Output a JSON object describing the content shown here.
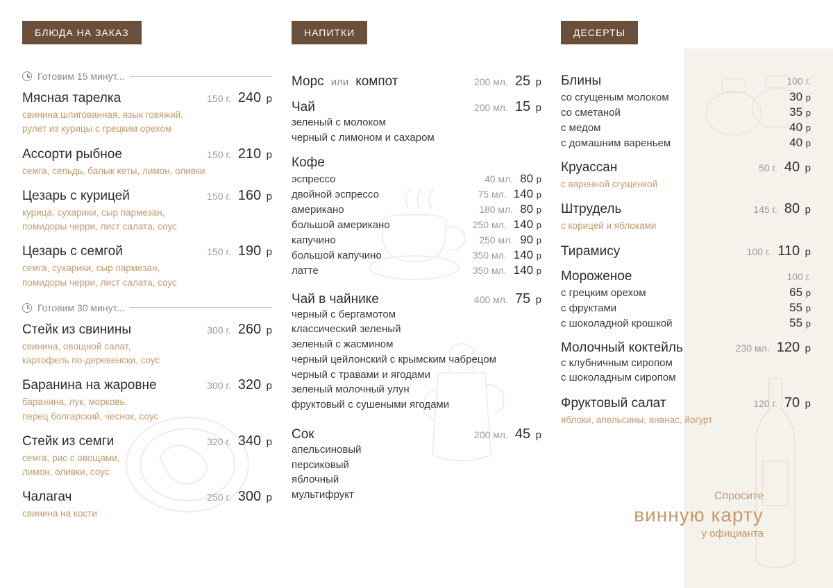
{
  "currency": "р",
  "colors": {
    "header_bg": "#6a4f3a",
    "header_text": "#ffffff",
    "accent": "#c49a6c",
    "muted": "#9a9a9a",
    "text": "#2c2c2c",
    "panel_bg": "#f5f2ec",
    "rule": "#d0c6b8"
  },
  "col1": {
    "header": "БЛЮДА НА ЗАКАЗ",
    "time1": "Готовим 15 минут...",
    "time2": "Готовим 30 минут...",
    "group1": [
      {
        "name": "Мясная тарелка",
        "portion": "150 г.",
        "price": "240",
        "desc": "свинина шпигованная, язык говяжий,\nрулет из курицы с грецким орехом"
      },
      {
        "name": "Ассорти рыбное",
        "portion": "150 г.",
        "price": "210",
        "desc": "семга, сельдь, балык кеты, лимон, оливки"
      },
      {
        "name": "Цезарь с курицей",
        "portion": "150 г.",
        "price": "160",
        "desc": "курица, сухарики, сыр пармезан,\nпомидоры черри, лист салата, соус"
      },
      {
        "name": "Цезарь с семгой",
        "portion": "150 г.",
        "price": "190",
        "desc": "семга, сухарики, сыр пармезан,\nпомидоры черри, лист салата, соус"
      }
    ],
    "group2": [
      {
        "name": "Стейк из свинины",
        "portion": "300 г.",
        "price": "260",
        "desc": "свинина, овощной салат,\nкартофель по-деревенски, соус"
      },
      {
        "name": "Баранина на жаровне",
        "portion": "300 г.",
        "price": "320",
        "desc": "баранина, лук, морковь,\nперец болгарский, чеснок, соус"
      },
      {
        "name": "Стейк из семги",
        "portion": "320 г.",
        "price": "340",
        "desc": "семга, рис с овощами,\nлимон, оливки, соус"
      },
      {
        "name": "Чалагач",
        "portion": "250 г.",
        "price": "300",
        "desc": "свинина на кости"
      }
    ]
  },
  "col2": {
    "header": "НАПИТКИ",
    "mors": {
      "name": "Морс",
      "note": "или",
      "name2": "компот",
      "portion": "200 мл.",
      "price": "25"
    },
    "tea": {
      "name": "Чай",
      "portion": "200 мл.",
      "price": "15",
      "variants": [
        "зеленый с молоком",
        "черный с лимоном и сахаром"
      ]
    },
    "coffee": {
      "name": "Кофе",
      "lines": [
        {
          "nm": "эспрессо",
          "pt": "40 мл.",
          "pr": "80"
        },
        {
          "nm": "двойной эспрессо",
          "pt": "75 мл.",
          "pr": "140"
        },
        {
          "nm": "американо",
          "pt": "180 мл.",
          "pr": "80"
        },
        {
          "nm": "большой американо",
          "pt": "250 мл.",
          "pr": "140"
        },
        {
          "nm": "капучино",
          "pt": "250 мл.",
          "pr": "90"
        },
        {
          "nm": "большой капучино",
          "pt": "350 мл.",
          "pr": "140"
        },
        {
          "nm": "латте",
          "pt": "350 мл.",
          "pr": "140"
        }
      ]
    },
    "teapot": {
      "name": "Чай в чайнике",
      "portion": "400 мл.",
      "price": "75",
      "variants": [
        "черный с бергамотом",
        "классический зеленый",
        "зеленый с жасмином",
        "черный цейлонский с крымским чабрецом",
        "черный с травами и ягодами",
        "зеленый молочный улун",
        "фруктовый с сушеными ягодами"
      ]
    },
    "juice": {
      "name": "Сок",
      "portion": "200 мл.",
      "price": "45",
      "variants": [
        "апельсиновый",
        "персиковый",
        "яблочный",
        "мультифрукт"
      ]
    }
  },
  "col3": {
    "header": "ДЕСЕРТЫ",
    "bliny": {
      "name": "Блины",
      "portion": "100 г.",
      "lines": [
        {
          "nm": "со сгущеным молоком",
          "pr": "30"
        },
        {
          "nm": "со сметаной",
          "pr": "35"
        },
        {
          "nm": "с медом",
          "pr": "40"
        },
        {
          "nm": "с домашним вареньем",
          "pr": "40"
        }
      ]
    },
    "croissant": {
      "name": "Круассан",
      "portion": "50 г.",
      "price": "40",
      "desc": "с варенной сгущенкой"
    },
    "strudel": {
      "name": "Штрудель",
      "portion": "145 г.",
      "price": "80",
      "desc": "с корицей и яблоками"
    },
    "tiramisu": {
      "name": "Тирамису",
      "portion": "100 г.",
      "price": "110"
    },
    "icecream": {
      "name": "Мороженое",
      "portion": "100 г.",
      "lines": [
        {
          "nm": "с грецким орехом",
          "pr": "65"
        },
        {
          "nm": "с фруктами",
          "pr": "55"
        },
        {
          "nm": "с шоколадной крошкой",
          "pr": "55"
        }
      ]
    },
    "milkshake": {
      "name": "Молочный коктейль",
      "portion": "230 мл.",
      "price": "120",
      "variants": [
        "с клубничным сиропом",
        "с шоколадным сиропом"
      ]
    },
    "fruitsalad": {
      "name": "Фруктовый салат",
      "portion": "120 г.",
      "price": "70",
      "desc": "яблоки, апельсины, ананас, йогурт"
    }
  },
  "wine_cta": {
    "l1": "Спросите",
    "l2": "винную карту",
    "l3": "у официанта"
  }
}
